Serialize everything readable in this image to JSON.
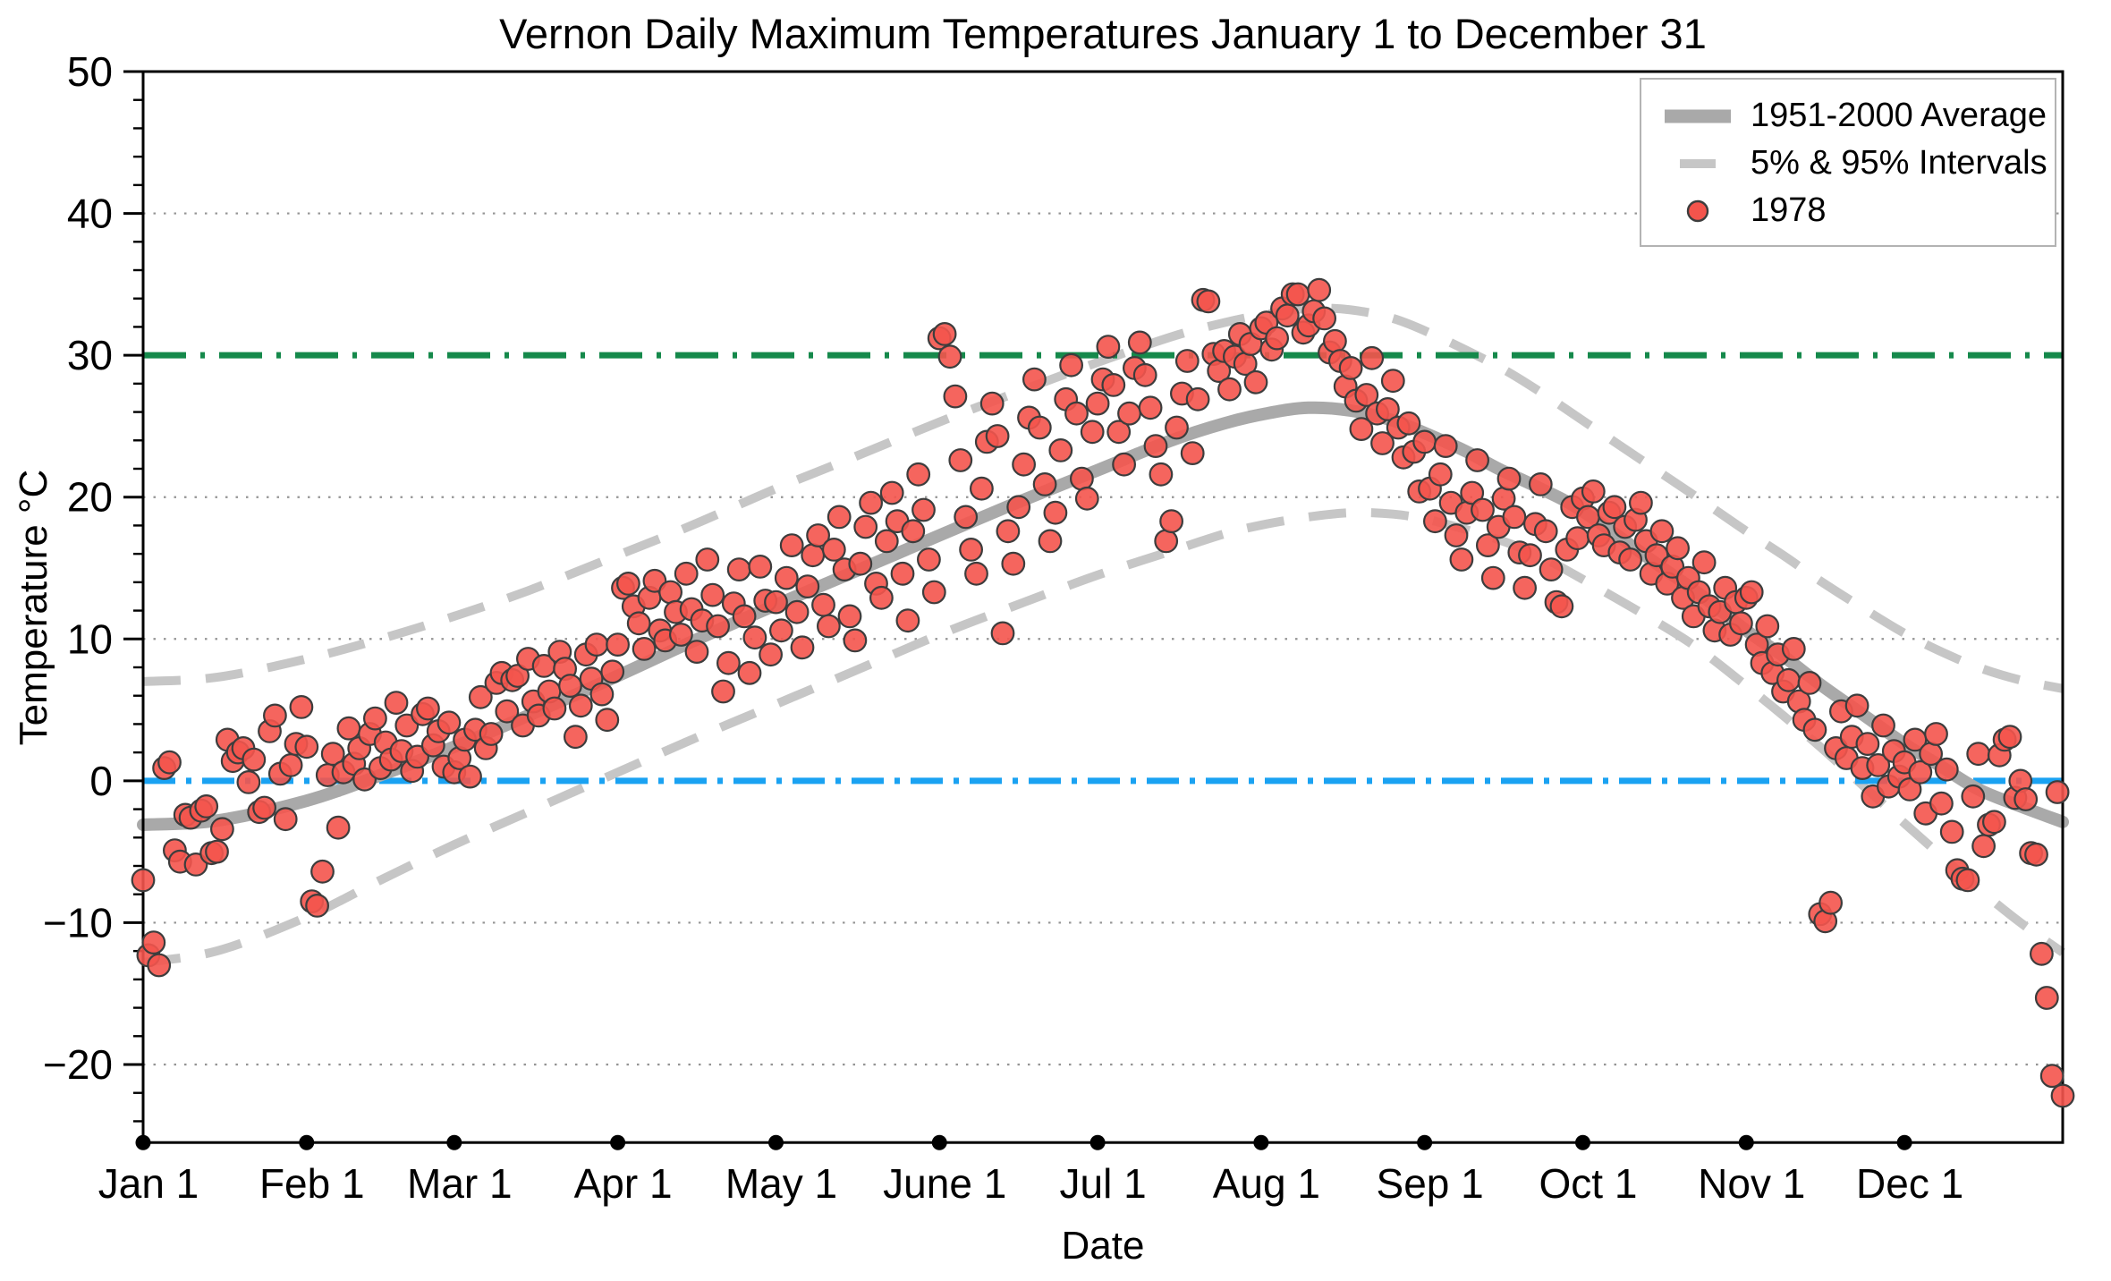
{
  "chart_data": {
    "type": "scatter",
    "title": "Vernon Daily Maximum Temperatures January 1 to December 31",
    "xlabel": "Date",
    "ylabel": "Temperature °C",
    "legend_position": "upper right",
    "grid": "dotted horizontal lines at major y ticks",
    "colors": {
      "scatter": "#f4544c",
      "scatter_edge": "#3d3d3d",
      "average_line": "#a9a9a9",
      "interval_lines": "#c6c6c6",
      "line_30c": "#15894b",
      "line_0c": "#1aa2f2",
      "gridline": "#949494",
      "axis": "#000000"
    },
    "x_axis": {
      "label": "Date",
      "min_day": 1,
      "max_day": 365,
      "ticks": [
        {
          "day": 1,
          "label": "Jan 1"
        },
        {
          "day": 32,
          "label": "Feb 1"
        },
        {
          "day": 60,
          "label": "Mar 1"
        },
        {
          "day": 91,
          "label": "Apr 1"
        },
        {
          "day": 121,
          "label": "May 1"
        },
        {
          "day": 152,
          "label": "June 1"
        },
        {
          "day": 182,
          "label": "Jul 1"
        },
        {
          "day": 213,
          "label": "Aug 1"
        },
        {
          "day": 244,
          "label": "Sep 1"
        },
        {
          "day": 274,
          "label": "Oct 1"
        },
        {
          "day": 305,
          "label": "Nov 1"
        },
        {
          "day": 335,
          "label": "Dec 1"
        }
      ]
    },
    "y_axis": {
      "label": "Temperature °C",
      "min": -25.5,
      "max": 50,
      "major_ticks": [
        {
          "value": -20,
          "label": "−20"
        },
        {
          "value": -10,
          "label": "−10"
        },
        {
          "value": 0,
          "label": "0"
        },
        {
          "value": 10,
          "label": "10"
        },
        {
          "value": 20,
          "label": "20"
        },
        {
          "value": 30,
          "label": "30"
        },
        {
          "value": 40,
          "label": "40"
        },
        {
          "value": 50,
          "label": "50"
        }
      ],
      "minor_tick_step": 2,
      "gridlines": [
        -20,
        -10,
        10,
        20,
        40
      ]
    },
    "reference_lines": [
      {
        "name": "30C-threshold-line",
        "value": 30,
        "style": "dash-dot",
        "color": "#15894b"
      },
      {
        "name": "0C-freezing-line",
        "value": 0,
        "style": "dash-dot",
        "color": "#1aa2f2"
      }
    ],
    "legend": {
      "items": [
        {
          "label": "1951-2000 Average",
          "swatch": "thick-gray-line"
        },
        {
          "label": "5% & 95% Intervals",
          "swatch": "gray-dash"
        },
        {
          "label": "1978",
          "swatch": "red-dot"
        }
      ]
    },
    "series": [
      {
        "name": "1951-2000 Average",
        "type": "line",
        "style": "solid-thick",
        "points": [
          [
            1,
            -3.1
          ],
          [
            15,
            -2.8
          ],
          [
            32,
            -1.4
          ],
          [
            46,
            0.4
          ],
          [
            60,
            2.4
          ],
          [
            74,
            4.6
          ],
          [
            91,
            7.4
          ],
          [
            105,
            9.8
          ],
          [
            121,
            12.4
          ],
          [
            135,
            14.6
          ],
          [
            152,
            17.3
          ],
          [
            166,
            19.5
          ],
          [
            182,
            21.9
          ],
          [
            196,
            24.0
          ],
          [
            206,
            25.2
          ],
          [
            214,
            25.9
          ],
          [
            222,
            26.3
          ],
          [
            230,
            26.1
          ],
          [
            238,
            25.4
          ],
          [
            246,
            24.2
          ],
          [
            252,
            23.2
          ],
          [
            258,
            22.0
          ],
          [
            266,
            20.6
          ],
          [
            274,
            19.0
          ],
          [
            288,
            15.3
          ],
          [
            296,
            13.2
          ],
          [
            305,
            10.6
          ],
          [
            312,
            8.8
          ],
          [
            319,
            6.8
          ],
          [
            327,
            4.7
          ],
          [
            335,
            2.6
          ],
          [
            342,
            1.0
          ],
          [
            349,
            -0.6
          ],
          [
            357,
            -1.8
          ],
          [
            365,
            -2.9
          ]
        ]
      },
      {
        "name": "95% Interval",
        "type": "line",
        "style": "dashed",
        "points": [
          [
            1,
            7.0
          ],
          [
            15,
            7.3
          ],
          [
            32,
            8.6
          ],
          [
            46,
            10.0
          ],
          [
            60,
            11.6
          ],
          [
            74,
            13.4
          ],
          [
            91,
            15.9
          ],
          [
            105,
            18.0
          ],
          [
            121,
            20.6
          ],
          [
            135,
            22.7
          ],
          [
            152,
            25.3
          ],
          [
            166,
            27.3
          ],
          [
            182,
            29.5
          ],
          [
            196,
            31.3
          ],
          [
            206,
            32.3
          ],
          [
            214,
            32.9
          ],
          [
            222,
            33.3
          ],
          [
            230,
            33.2
          ],
          [
            238,
            32.6
          ],
          [
            246,
            31.4
          ],
          [
            258,
            29.2
          ],
          [
            266,
            27.4
          ],
          [
            274,
            25.4
          ],
          [
            288,
            21.9
          ],
          [
            296,
            19.9
          ],
          [
            305,
            17.6
          ],
          [
            312,
            15.9
          ],
          [
            319,
            14.1
          ],
          [
            327,
            12.2
          ],
          [
            335,
            10.4
          ],
          [
            342,
            9.1
          ],
          [
            349,
            8.0
          ],
          [
            357,
            7.1
          ],
          [
            365,
            6.5
          ]
        ]
      },
      {
        "name": "5% Interval",
        "type": "line",
        "style": "dashed",
        "points": [
          [
            1,
            -12.8
          ],
          [
            15,
            -12.0
          ],
          [
            32,
            -9.6
          ],
          [
            46,
            -7.0
          ],
          [
            60,
            -4.5
          ],
          [
            74,
            -2.2
          ],
          [
            91,
            0.6
          ],
          [
            105,
            2.9
          ],
          [
            121,
            5.4
          ],
          [
            135,
            7.6
          ],
          [
            152,
            10.3
          ],
          [
            166,
            12.3
          ],
          [
            182,
            14.5
          ],
          [
            196,
            16.2
          ],
          [
            206,
            17.4
          ],
          [
            214,
            18.1
          ],
          [
            222,
            18.6
          ],
          [
            230,
            18.9
          ],
          [
            238,
            18.8
          ],
          [
            246,
            18.3
          ],
          [
            258,
            17.0
          ],
          [
            266,
            15.8
          ],
          [
            274,
            14.2
          ],
          [
            288,
            11.2
          ],
          [
            296,
            9.3
          ],
          [
            305,
            6.7
          ],
          [
            312,
            4.6
          ],
          [
            319,
            2.4
          ],
          [
            327,
            -0.3
          ],
          [
            335,
            -3.0
          ],
          [
            342,
            -5.3
          ],
          [
            349,
            -7.6
          ],
          [
            357,
            -10.0
          ],
          [
            365,
            -12.1
          ]
        ]
      },
      {
        "name": "1978",
        "type": "scatter",
        "first_day": 1,
        "values": [
          -7.0,
          -12.3,
          -11.4,
          -13.0,
          0.9,
          1.3,
          -4.9,
          -5.7,
          -2.4,
          -2.6,
          -5.9,
          -2.1,
          -1.8,
          -5.1,
          -5.0,
          -3.4,
          2.9,
          1.4,
          2.0,
          2.3,
          -0.1,
          1.5,
          -2.2,
          -1.9,
          3.5,
          4.6,
          0.5,
          -2.7,
          1.1,
          2.6,
          5.2,
          2.4,
          -8.5,
          -8.8,
          -6.4,
          0.4,
          1.9,
          -3.3,
          0.6,
          3.7,
          1.2,
          2.3,
          0.1,
          3.3,
          4.4,
          0.9,
          2.7,
          1.5,
          5.5,
          2.1,
          3.9,
          0.7,
          1.7,
          4.7,
          5.1,
          2.5,
          3.5,
          1.0,
          4.1,
          0.6,
          1.6,
          2.9,
          0.3,
          3.6,
          5.9,
          2.3,
          3.3,
          6.9,
          7.6,
          4.9,
          7.1,
          7.4,
          3.9,
          8.6,
          5.6,
          4.6,
          8.1,
          6.3,
          5.1,
          9.1,
          7.9,
          6.7,
          3.1,
          5.3,
          8.9,
          7.2,
          9.6,
          6.1,
          4.3,
          7.7,
          9.6,
          13.6,
          13.9,
          12.3,
          11.1,
          9.3,
          12.9,
          14.1,
          10.6,
          9.9,
          13.3,
          11.9,
          10.3,
          14.6,
          12.1,
          9.1,
          11.3,
          15.6,
          13.1,
          10.9,
          6.3,
          8.3,
          12.5,
          14.9,
          11.6,
          7.6,
          10.1,
          15.1,
          12.7,
          8.9,
          12.6,
          10.6,
          14.3,
          16.6,
          11.9,
          9.4,
          13.7,
          15.9,
          17.3,
          12.4,
          10.9,
          16.3,
          18.6,
          14.9,
          11.6,
          9.9,
          15.3,
          17.9,
          19.6,
          13.9,
          12.9,
          16.9,
          20.3,
          18.3,
          14.6,
          11.3,
          17.6,
          21.6,
          19.1,
          15.6,
          13.3,
          31.2,
          31.5,
          29.9,
          27.1,
          22.6,
          18.6,
          16.3,
          14.6,
          20.6,
          23.9,
          26.6,
          24.3,
          10.4,
          17.6,
          15.3,
          19.3,
          22.3,
          25.6,
          28.3,
          24.9,
          20.9,
          16.9,
          18.9,
          23.3,
          26.9,
          29.3,
          25.9,
          21.3,
          19.9,
          24.6,
          26.6,
          28.3,
          30.6,
          27.9,
          24.6,
          22.3,
          25.9,
          29.1,
          30.9,
          28.6,
          26.3,
          23.6,
          21.6,
          16.9,
          18.3,
          24.9,
          27.3,
          29.6,
          23.1,
          26.9,
          33.9,
          33.8,
          30.1,
          28.9,
          30.3,
          27.6,
          29.9,
          31.5,
          29.4,
          30.8,
          28.1,
          31.9,
          32.3,
          30.4,
          31.2,
          33.3,
          32.8,
          34.3,
          34.3,
          31.6,
          32.1,
          33.1,
          34.6,
          32.6,
          30.2,
          31.0,
          29.6,
          27.8,
          29.1,
          26.8,
          24.8,
          27.2,
          29.8,
          25.9,
          23.8,
          26.2,
          28.2,
          24.9,
          22.8,
          25.2,
          23.2,
          20.4,
          23.9,
          20.6,
          18.3,
          21.6,
          23.6,
          19.6,
          17.3,
          15.6,
          18.9,
          20.3,
          22.6,
          19.1,
          16.6,
          14.3,
          17.9,
          19.9,
          21.3,
          18.6,
          16.1,
          13.6,
          15.9,
          18.1,
          20.9,
          17.6,
          14.9,
          12.6,
          12.3,
          16.3,
          19.3,
          17.1,
          19.9,
          18.6,
          20.4,
          17.3,
          16.6,
          18.9,
          19.3,
          16.1,
          17.9,
          15.6,
          18.4,
          19.6,
          16.9,
          14.6,
          15.9,
          17.6,
          13.9,
          15.1,
          16.4,
          12.9,
          14.3,
          11.6,
          13.3,
          15.4,
          12.3,
          10.6,
          11.9,
          13.6,
          10.3,
          12.6,
          11.1,
          12.9,
          13.3,
          9.6,
          8.3,
          10.9,
          7.6,
          8.9,
          6.3,
          7.1,
          9.3,
          5.6,
          4.3,
          6.9,
          3.6,
          -9.4,
          -9.9,
          -8.6,
          2.3,
          4.9,
          1.6,
          3.1,
          5.3,
          0.9,
          2.6,
          -1.1,
          1.1,
          3.9,
          -0.4,
          2.1,
          0.3,
          1.3,
          -0.6,
          2.9,
          0.6,
          -2.3,
          1.9,
          3.3,
          -1.6,
          0.8,
          -3.6,
          -6.3,
          -6.9,
          -7.0,
          -1.1,
          1.9,
          -4.6,
          -3.1,
          -2.9,
          1.8,
          2.9,
          3.1,
          -1.2,
          0.0,
          -1.3,
          -5.1,
          -5.2,
          -12.2,
          -15.3,
          -20.8,
          -0.8,
          -22.2
        ]
      }
    ]
  }
}
